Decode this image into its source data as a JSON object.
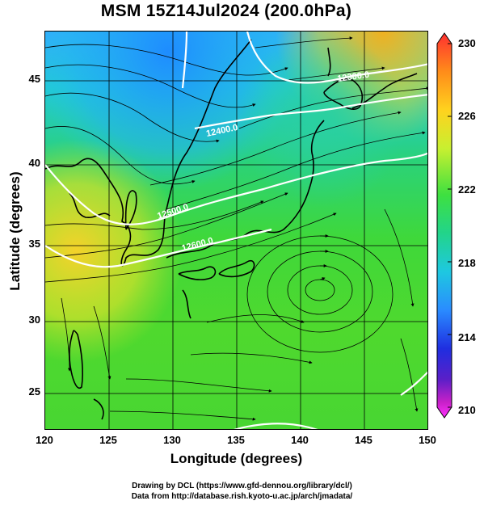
{
  "title": "MSM 15Z14Jul2024 (200.0hPa)",
  "xlabel": "Longitude (degrees)",
  "ylabel": "Latitude  (degrees)",
  "x_ticks": [
    "120",
    "125",
    "130",
    "135",
    "140",
    "145",
    "150"
  ],
  "y_ticks": [
    "25",
    "30",
    "35",
    "40",
    "45"
  ],
  "colorbar": {
    "labels": [
      "230",
      "226",
      "222",
      "218",
      "214",
      "210"
    ],
    "colors": [
      "#ff3030",
      "#ff8c1a",
      "#ffd21e",
      "#c8f030",
      "#3ee040",
      "#22d48a",
      "#1ec8e0",
      "#2a8cff",
      "#1f2ee0",
      "#5a1fc8",
      "#c820c8",
      "#ff30ff"
    ]
  },
  "contour_labels": [
    "12300.0",
    "12400.0",
    "12500.0",
    "12600.0"
  ],
  "credits": {
    "line1": "Drawing by DCL (https://www.gfd-dennou.org/library/dcl/)",
    "line2": "Data from http://database.rish.kyoto-u.ac.jp/arch/jmadata/"
  }
}
